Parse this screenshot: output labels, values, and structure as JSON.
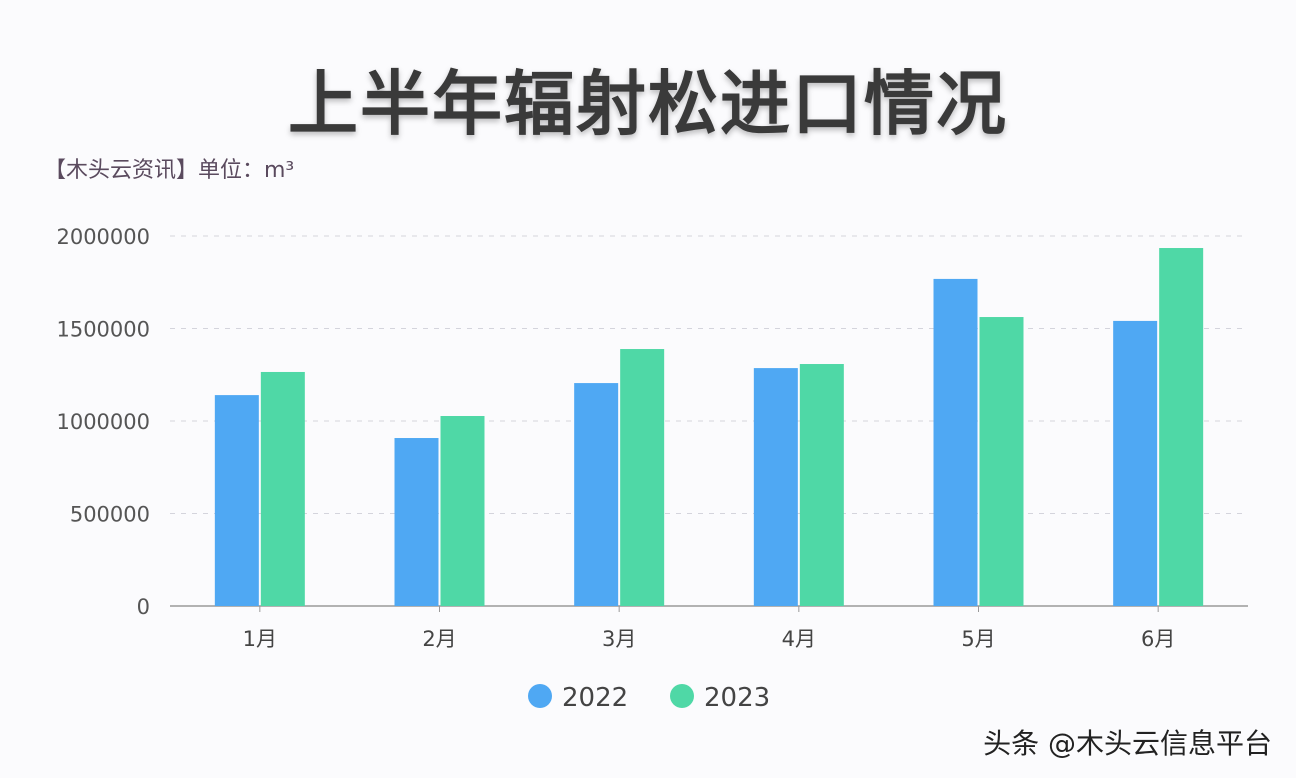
{
  "chart_data": {
    "type": "bar",
    "title": "上半年辐射松进口情况",
    "subtitle": "【木头云资讯】单位：m³",
    "categories": [
      "1月",
      "2月",
      "3月",
      "4月",
      "5月",
      "6月"
    ],
    "series": [
      {
        "name": "2022",
        "color": "#4fa8f3",
        "values": [
          1140000,
          908000,
          1205000,
          1286000,
          1768000,
          1541000
        ]
      },
      {
        "name": "2023",
        "color": "#4fd8a6",
        "values": [
          1265000,
          1027000,
          1389000,
          1308000,
          1562000,
          1935000
        ]
      }
    ],
    "ylim": [
      0,
      2000000
    ],
    "yticks": [
      "0",
      "500000",
      "1000000",
      "1500000",
      "2000000"
    ],
    "grid": true,
    "legend": "bottom"
  },
  "watermark": "头条 @木头云信息平台"
}
